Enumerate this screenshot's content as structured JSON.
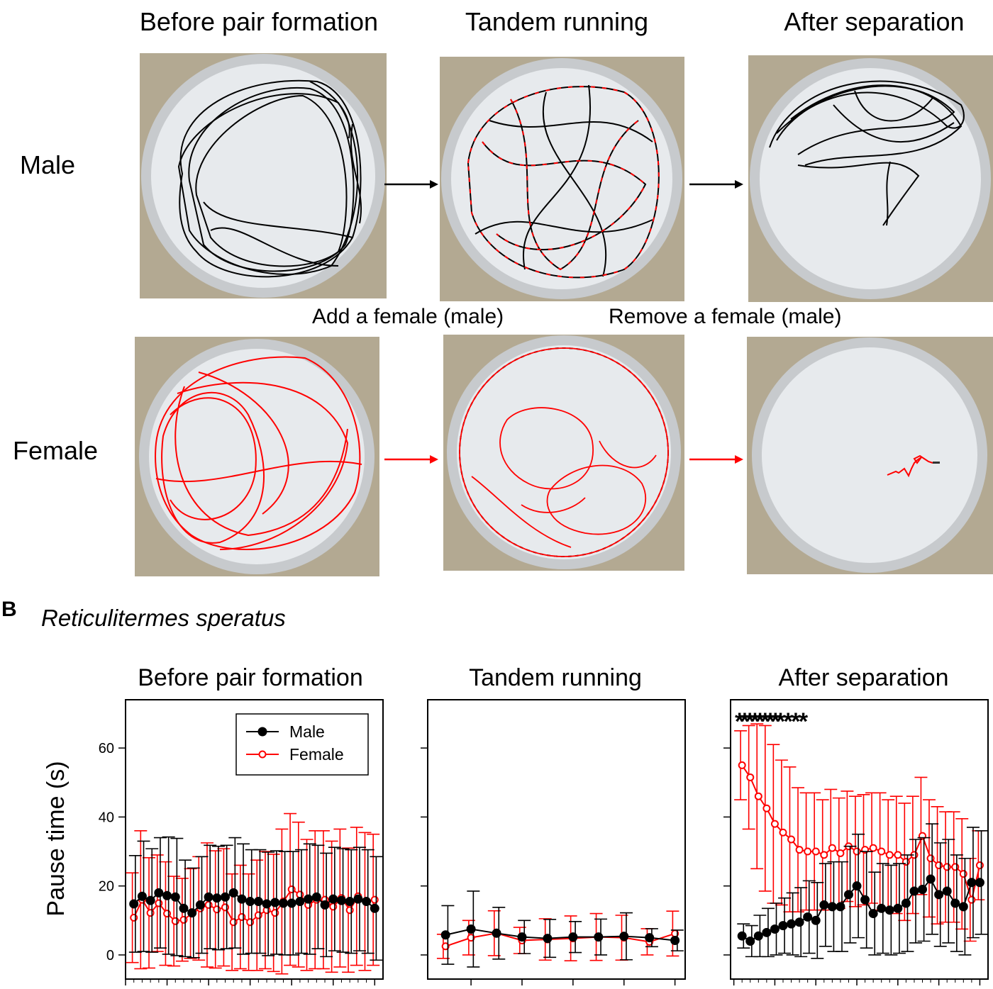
{
  "figure_top": {
    "column_titles": [
      "Before pair formation",
      "Tandem running",
      "After separation"
    ],
    "row_labels": [
      "Male",
      "Female"
    ],
    "transition_labels": [
      "Add a female (male)",
      "Remove a female (male)"
    ],
    "colors": {
      "male_track": "#000000",
      "female_track": "#ff0000",
      "arena_floor": "#e6e9ec",
      "arena_rim": "#c9ccd0",
      "background": "#b3a992"
    }
  },
  "panel_b": {
    "letter": "B",
    "species": "Reticulitermes speratus"
  },
  "chart_data": [
    {
      "type": "line",
      "title": "Before pair formation",
      "xlabel": "",
      "ylabel": "Pause time (s)",
      "xlim": [
        0,
        31
      ],
      "ylim": [
        -7,
        74
      ],
      "xticks": [
        0,
        5,
        10,
        15,
        20,
        25,
        30
      ],
      "yticks": [
        0,
        20,
        40,
        60
      ],
      "legend": {
        "position": "top-center",
        "entries": [
          "Male",
          "Female"
        ]
      },
      "grid": false,
      "x": [
        1,
        2,
        3,
        4,
        5,
        6,
        7,
        8,
        9,
        10,
        11,
        12,
        13,
        14,
        15,
        16,
        17,
        18,
        19,
        20,
        21,
        22,
        23,
        24,
        25,
        26,
        27,
        28,
        29,
        30
      ],
      "series": [
        {
          "name": "Male",
          "color": "#000000",
          "marker": "filled-circle",
          "values": [
            14.8,
            17.0,
            15.8,
            18.0,
            17.2,
            16.8,
            13.5,
            12.2,
            14.5,
            16.8,
            16.5,
            16.8,
            18.0,
            16.2,
            15.5,
            15.5,
            14.8,
            15.2,
            15.0,
            15.0,
            15.5,
            16.2,
            16.8,
            14.5,
            16.2,
            15.8,
            15.5,
            16.2,
            15.5,
            13.5
          ],
          "errors": [
            14,
            16,
            15,
            16,
            17,
            17,
            14,
            13,
            14,
            15,
            15,
            15,
            16,
            16,
            15,
            15,
            15,
            15,
            15,
            15,
            15,
            16,
            15,
            15,
            15,
            15,
            15,
            15,
            15,
            15
          ]
        },
        {
          "name": "Female",
          "color": "#ff0000",
          "marker": "open-circle",
          "values": [
            10.8,
            16.0,
            12.2,
            15.0,
            12.0,
            9.8,
            10.2,
            12.0,
            13.5,
            14.5,
            13.2,
            13.8,
            9.5,
            11.0,
            9.5,
            11.5,
            13.0,
            12.2,
            15.5,
            19.0,
            17.5,
            14.5,
            16.0,
            16.0,
            14.0,
            16.5,
            13.0,
            17.0,
            15.5,
            16.0
          ],
          "errors": [
            13,
            20,
            16,
            14,
            15,
            13,
            12,
            13,
            15,
            18,
            17,
            17,
            14,
            15,
            14,
            16,
            17,
            17,
            21,
            22,
            21,
            19,
            20,
            20,
            19,
            20,
            18,
            20,
            20,
            19
          ]
        }
      ]
    },
    {
      "type": "line",
      "title": "Tandem running",
      "xlabel": "",
      "ylabel": "",
      "xlim": [
        0.3,
        10.4
      ],
      "ylim": [
        -7,
        74
      ],
      "xticks": [
        2,
        4,
        6,
        8,
        10
      ],
      "yticks": [
        0,
        20,
        40,
        60
      ],
      "grid": false,
      "x": [
        1,
        2,
        3,
        4,
        5,
        6,
        7,
        8,
        9,
        10
      ],
      "series": [
        {
          "name": "Male",
          "color": "#000000",
          "marker": "filled-circle",
          "values": [
            5.8,
            7.5,
            6.3,
            5.2,
            4.8,
            5.2,
            5.2,
            5.4,
            5.0,
            4.2
          ],
          "errors": [
            8.5,
            11,
            7.5,
            4.8,
            5.5,
            4.5,
            5.2,
            6.8,
            2.6,
            3.0
          ]
        },
        {
          "name": "Female",
          "color": "#ff0000",
          "marker": "open-circle",
          "values": [
            2.5,
            5.0,
            6.3,
            4.2,
            4.5,
            4.8,
            5.2,
            5.0,
            3.8,
            6.2
          ],
          "errors": [
            3.5,
            5.0,
            6.5,
            3.8,
            6.0,
            6.5,
            6.8,
            6.5,
            3.8,
            6.5
          ]
        }
      ]
    },
    {
      "type": "line",
      "title": "After separation",
      "xlabel": "",
      "ylabel": "",
      "xlim": [
        -0.4,
        31
      ],
      "ylim": [
        -7,
        74
      ],
      "xticks": [
        0,
        5,
        10,
        15,
        20,
        25,
        30
      ],
      "yticks": [
        0,
        20,
        40,
        60
      ],
      "grid": false,
      "significance_text": "********* * * *",
      "x": [
        1,
        2,
        3,
        4,
        5,
        6,
        7,
        8,
        9,
        10,
        11,
        12,
        13,
        14,
        15,
        16,
        17,
        18,
        19,
        20,
        21,
        22,
        23,
        24,
        25,
        26,
        27,
        28,
        29,
        30
      ],
      "series": [
        {
          "name": "Male",
          "color": "#000000",
          "marker": "filled-circle",
          "values": [
            5.5,
            4.0,
            5.5,
            6.5,
            7.5,
            8.5,
            9.0,
            9.5,
            11.0,
            10.0,
            14.5,
            14.0,
            14.0,
            17.5,
            20.0,
            16.0,
            12.0,
            13.5,
            13.0,
            13.5,
            15.0,
            18.5,
            19.0,
            22.0,
            17.5,
            18.5,
            15.0,
            14.0,
            21.0,
            21.0
          ],
          "errors": [
            3.5,
            4.5,
            6.0,
            7.0,
            7.5,
            8.0,
            9.0,
            10.0,
            10.5,
            11.0,
            12.0,
            13.0,
            13.0,
            14.0,
            15.0,
            14.0,
            12.0,
            13.0,
            13.0,
            13.0,
            14.0,
            15.0,
            15.0,
            16.0,
            15.0,
            15.0,
            14.0,
            14.0,
            16.0,
            15.0
          ]
        },
        {
          "name": "Female",
          "color": "#ff0000",
          "marker": "open-circle",
          "values": [
            55.0,
            51.5,
            46.0,
            42.5,
            38.0,
            35.5,
            33.5,
            30.5,
            30.0,
            30.0,
            29.0,
            31.0,
            29.5,
            31.5,
            30.0,
            30.5,
            31.0,
            30.0,
            29.0,
            29.0,
            27.0,
            29.0,
            34.5,
            28.0,
            26.0,
            25.5,
            25.5,
            23.5,
            16.0,
            26.0
          ],
          "errors": [
            10.0,
            15.0,
            21.0,
            24.0,
            23.0,
            21.0,
            21.0,
            18.0,
            17.0,
            17.0,
            16.0,
            17.0,
            16.0,
            16.0,
            16.0,
            16.0,
            16.0,
            17.0,
            16.0,
            17.0,
            17.0,
            17.0,
            17.0,
            17.0,
            17.0,
            16.0,
            16.0,
            16.0,
            12.0,
            10.0
          ]
        }
      ]
    }
  ]
}
